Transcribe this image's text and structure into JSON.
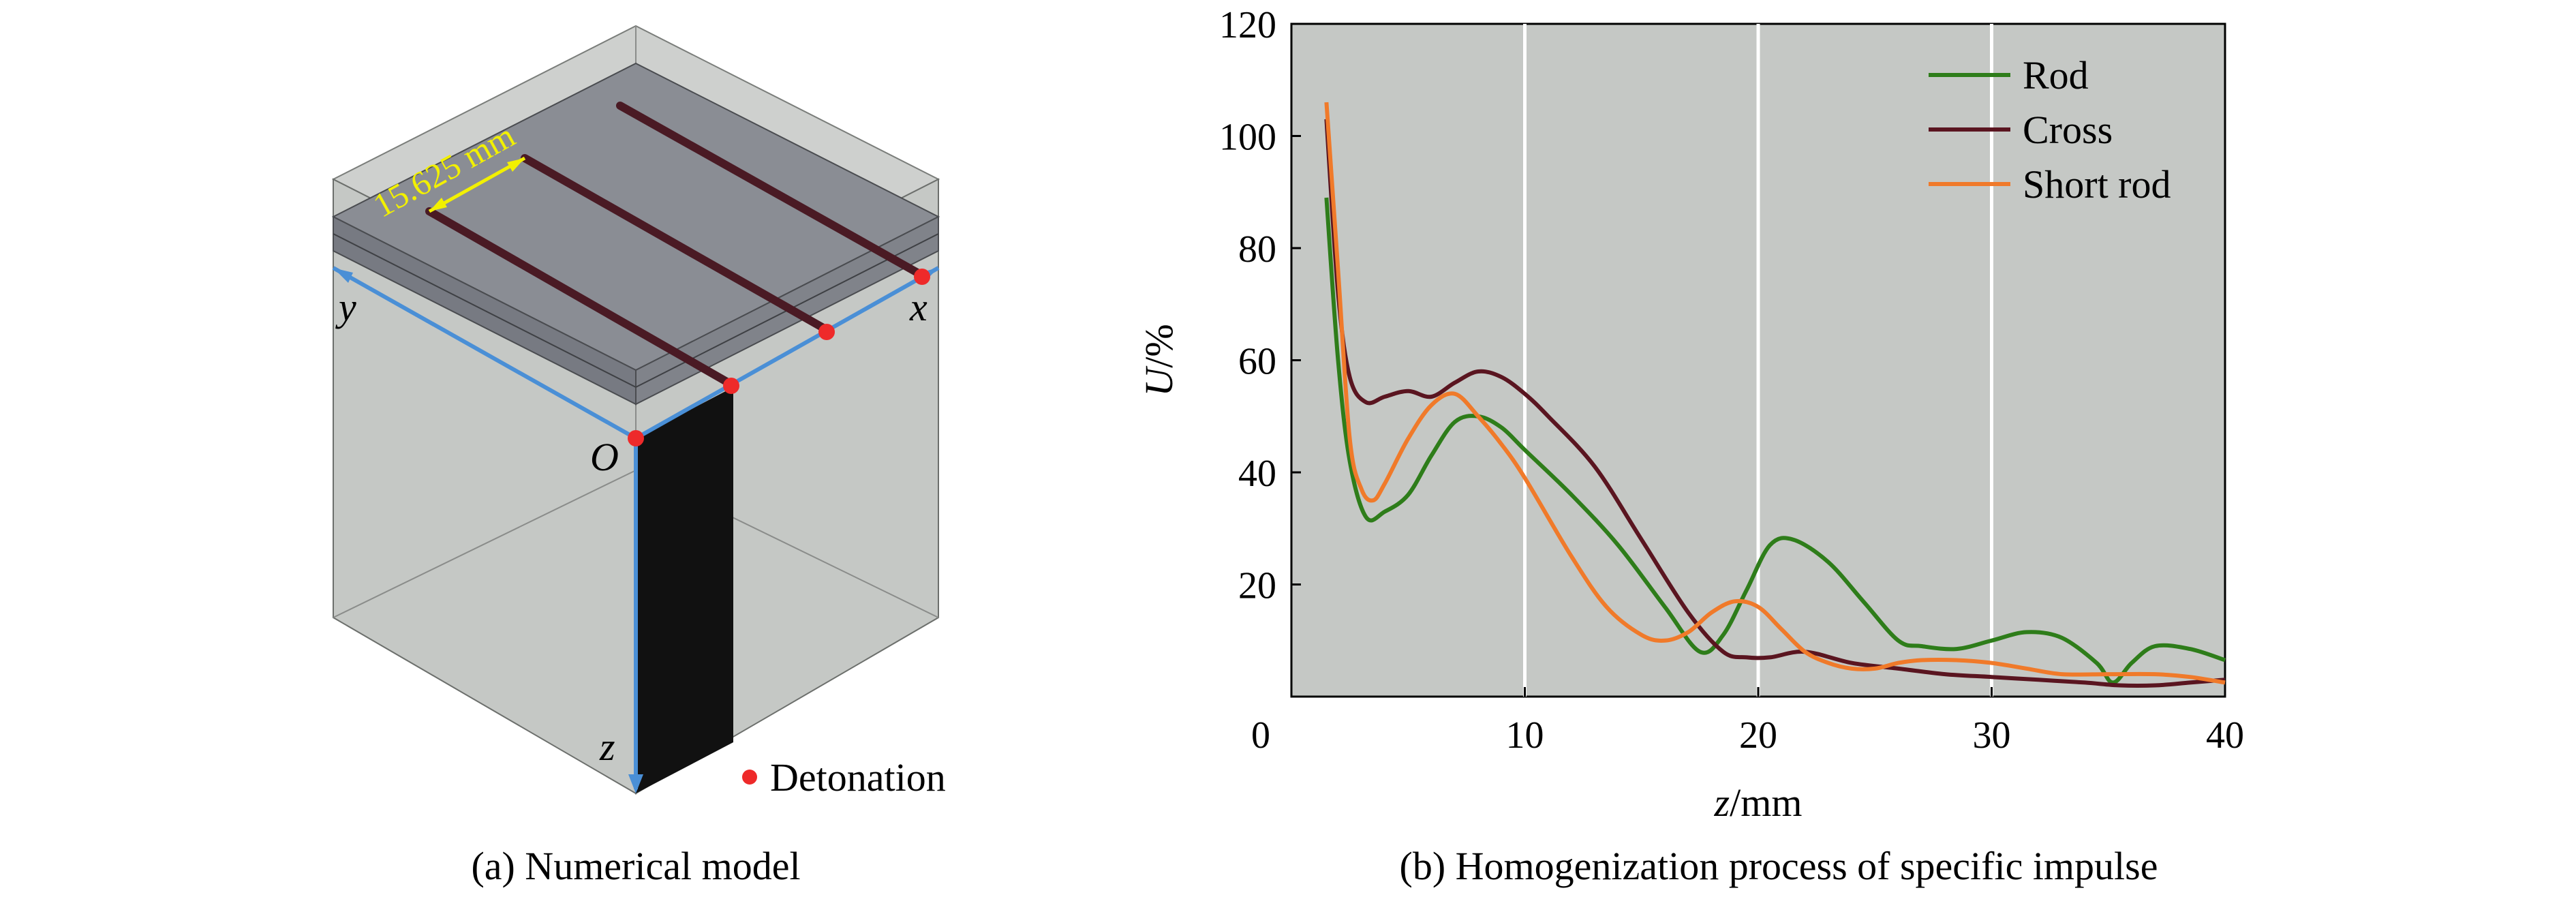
{
  "panel_a": {
    "caption": "(a) Numerical model",
    "axes": {
      "x": "x",
      "y": "y",
      "z": "z",
      "origin": "O"
    },
    "dimension_label": "15.625 mm",
    "legend_detonation": "Detonation",
    "colors": {
      "block": "#c5c8c5",
      "charge": "#8a8d94",
      "rod": "#4a1a24",
      "column": "#111111",
      "detonation": "#ee2a2a",
      "axis": "#4a8fd6",
      "dimension": "#f2f000"
    }
  },
  "panel_b": {
    "caption": "(b) Homogenization process of specific impulse"
  },
  "chart_data": {
    "type": "line",
    "xlabel_var": "z",
    "xlabel_unit": "/mm",
    "ylabel_var": "U",
    "ylabel_unit": "/%",
    "xlim": [
      0,
      40
    ],
    "ylim": [
      0,
      120
    ],
    "xticks": [
      "0",
      "10",
      "20",
      "30",
      "40"
    ],
    "yticks": [
      "20",
      "40",
      "60",
      "80",
      "100",
      "120"
    ],
    "grid": "vertical",
    "legend_position": "top-right",
    "plot_background": "#c5c8c5",
    "series": [
      {
        "name": "Rod",
        "color": "#2e7d1a",
        "points": [
          [
            1.5,
            89
          ],
          [
            2,
            60
          ],
          [
            2.5,
            42
          ],
          [
            3.2,
            32
          ],
          [
            4,
            33
          ],
          [
            5,
            36
          ],
          [
            6,
            43
          ],
          [
            7,
            49
          ],
          [
            8,
            50
          ],
          [
            9,
            48
          ],
          [
            10,
            44
          ],
          [
            12,
            36
          ],
          [
            14,
            27
          ],
          [
            16,
            16
          ],
          [
            17.5,
            8
          ],
          [
            18.5,
            11
          ],
          [
            19.5,
            19
          ],
          [
            20.5,
            27
          ],
          [
            21.5,
            28
          ],
          [
            23,
            24
          ],
          [
            24.5,
            17
          ],
          [
            26,
            10
          ],
          [
            27,
            9
          ],
          [
            28.5,
            8.5
          ],
          [
            30,
            10
          ],
          [
            31.5,
            11.5
          ],
          [
            33,
            10.5
          ],
          [
            34.5,
            6
          ],
          [
            35.2,
            2.5
          ],
          [
            36,
            6
          ],
          [
            37,
            9
          ],
          [
            38.5,
            8.5
          ],
          [
            40,
            6.5
          ]
        ]
      },
      {
        "name": "Cross",
        "color": "#5a1520",
        "points": [
          [
            1.5,
            103
          ],
          [
            2,
            72
          ],
          [
            2.5,
            57
          ],
          [
            3.2,
            52.5
          ],
          [
            4,
            53.5
          ],
          [
            5,
            54.5
          ],
          [
            6,
            53.5
          ],
          [
            7,
            56
          ],
          [
            8,
            58
          ],
          [
            9,
            57
          ],
          [
            10,
            54
          ],
          [
            11,
            50
          ],
          [
            13,
            41
          ],
          [
            15,
            28
          ],
          [
            17,
            15
          ],
          [
            18.5,
            8
          ],
          [
            19.5,
            7
          ],
          [
            20.5,
            7
          ],
          [
            22,
            8
          ],
          [
            24,
            6
          ],
          [
            26,
            5
          ],
          [
            28,
            4
          ],
          [
            30,
            3.5
          ],
          [
            32,
            3
          ],
          [
            34,
            2.5
          ],
          [
            35.5,
            2
          ],
          [
            37,
            2
          ],
          [
            38.5,
            2.5
          ],
          [
            40,
            3
          ]
        ]
      },
      {
        "name": "Short rod",
        "color": "#f07a2a",
        "points": [
          [
            1.5,
            106
          ],
          [
            2,
            76
          ],
          [
            2.5,
            46
          ],
          [
            3,
            37
          ],
          [
            3.5,
            35
          ],
          [
            4,
            38
          ],
          [
            5,
            46
          ],
          [
            6,
            52
          ],
          [
            7,
            54
          ],
          [
            8,
            50
          ],
          [
            9,
            45
          ],
          [
            10,
            39
          ],
          [
            12,
            25
          ],
          [
            13.5,
            16
          ],
          [
            15,
            11
          ],
          [
            16,
            10
          ],
          [
            17,
            11.5
          ],
          [
            18,
            15
          ],
          [
            19,
            17
          ],
          [
            20,
            16
          ],
          [
            21,
            12
          ],
          [
            22,
            8
          ],
          [
            23,
            6
          ],
          [
            24,
            5
          ],
          [
            25,
            5
          ],
          [
            26,
            6
          ],
          [
            27,
            6.5
          ],
          [
            28.5,
            6.5
          ],
          [
            30,
            6
          ],
          [
            31.5,
            5
          ],
          [
            33,
            4
          ],
          [
            35,
            4
          ],
          [
            37,
            4
          ],
          [
            38.5,
            3.5
          ],
          [
            40,
            2.5
          ]
        ]
      }
    ]
  }
}
